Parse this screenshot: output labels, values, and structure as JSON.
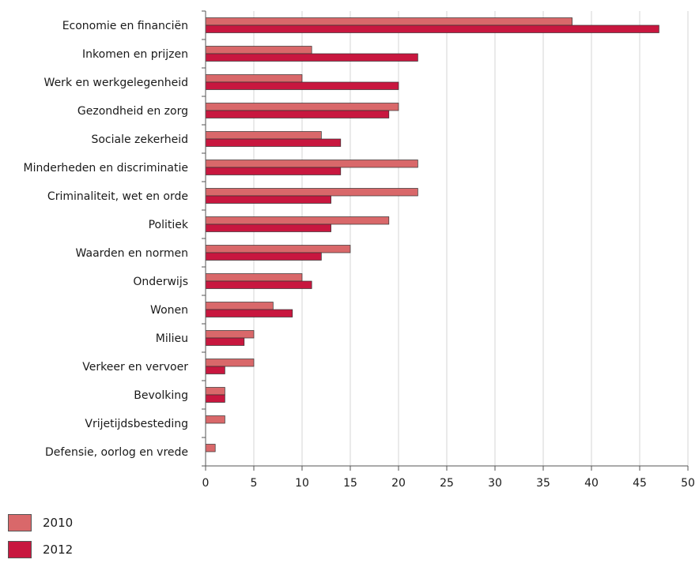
{
  "chart_data": {
    "type": "bar",
    "orientation": "horizontal",
    "categories": [
      "Economie en financiën",
      "Inkomen en prijzen",
      "Werk en werkgelegenheid",
      "Gezondheid en zorg",
      "Sociale zekerheid",
      "Minderheden en discriminatie",
      "Criminaliteit, wet en orde",
      "Politiek",
      "Waarden en normen",
      "Onderwijs",
      "Wonen",
      "Milieu",
      "Verkeer en vervoer",
      "Bevolking",
      "Vrijetijdsbesteding",
      "Defensie, oorlog en vrede"
    ],
    "series": [
      {
        "name": "2010",
        "color": "#d9686a",
        "values": [
          38,
          11,
          10,
          20,
          12,
          22,
          22,
          19,
          15,
          10,
          7,
          5,
          5,
          2,
          2,
          1
        ]
      },
      {
        "name": "2012",
        "color": "#c8173f",
        "values": [
          47,
          22,
          20,
          19,
          14,
          14,
          13,
          13,
          12,
          11,
          9,
          4,
          2,
          2,
          0,
          0
        ]
      }
    ],
    "x_ticks": [
      "0",
      "5",
      "10",
      "15",
      "20",
      "25",
      "30",
      "35",
      "40",
      "45",
      "50"
    ],
    "xlim": [
      0,
      50
    ],
    "grid": "vertical",
    "legend_position": "bottom-left",
    "title": "",
    "xlabel": "",
    "ylabel": ""
  },
  "legend": {
    "items": [
      {
        "label": "2010",
        "color": "#d9686a"
      },
      {
        "label": "2012",
        "color": "#c8173f"
      }
    ]
  }
}
